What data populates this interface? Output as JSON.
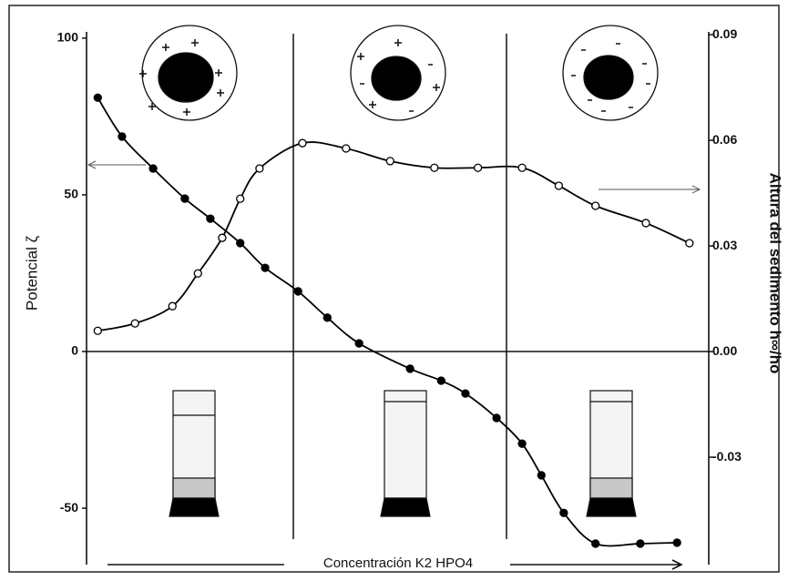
{
  "chart_data": {
    "type": "line",
    "y_label": "Potencial ζ",
    "y2_label": "Altura del sedimento h∞/ho",
    "x_label": "Concentración K2 HPO4",
    "xlim": [
      0,
      100
    ],
    "ylim": [
      -68,
      102
    ],
    "yticks": [
      100,
      50,
      0,
      -50
    ],
    "y2lim": [
      -0.0605,
      0.0908
    ],
    "y2ticks": [
      0.09,
      0.06,
      0.03,
      {
        "value": 0,
        "label": "0.00"
      },
      -0.03
    ],
    "series": [
      {
        "color": "#000000",
        "fill": "#000000",
        "x": [
          1.8,
          5.7,
          10.7,
          15.8,
          19.9,
          24.7,
          28.7,
          34.0,
          38.7,
          43.8,
          52.0,
          57.0,
          60.9,
          65.9,
          70.0,
          73.1,
          76.7,
          81.8,
          89.0,
          94.9
        ],
        "values": [
          81,
          68.6,
          58.4,
          48.8,
          42.4,
          34.6,
          26.7,
          19.2,
          10.8,
          2.6,
          -5.5,
          -9.3,
          -13.4,
          -21.2,
          -29.4,
          -39.5,
          -51.5,
          -61.3,
          -61.3,
          -61
        ]
      },
      {
        "color": "#000000",
        "fill": "#ffffff",
        "axis": "y2",
        "x": [
          1.8,
          7.8,
          13.8,
          17.9,
          21.8,
          24.7,
          27.8,
          34.7,
          41.7,
          48.8,
          55.9,
          62.9,
          70.0,
          75.9,
          81.8,
          89.9,
          96.9
        ],
        "values": [
          0.0059,
          0.008,
          0.0129,
          0.0222,
          0.0323,
          0.0434,
          0.052,
          0.0592,
          0.0577,
          0.0541,
          0.0522,
          0.0522,
          0.0522,
          0.0471,
          0.0414,
          0.0365,
          0.0308
        ]
      }
    ]
  }
}
